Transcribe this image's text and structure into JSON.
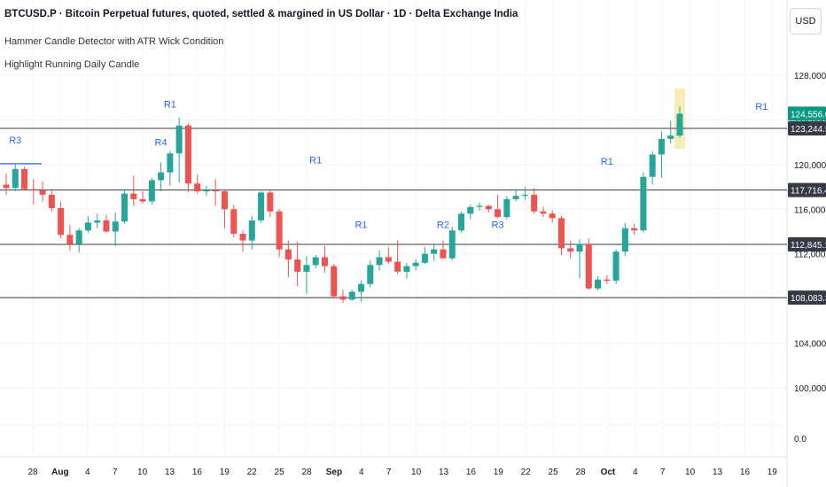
{
  "header": {
    "title": "BTCUSD.P · Bitcoin Perpetual futures, quoted, settled & margined in US Dollar · 1D · Delta Exchange India",
    "indicator_1": "Hammer Candle Detector with ATR Wick Condition",
    "indicator_2": "Highlight Running Daily Candle",
    "currency": "USD"
  },
  "colors": {
    "up": "#26a69a",
    "down": "#ef5350",
    "label": "#2962ff",
    "level": "#363a45",
    "last_price": "#089981",
    "highlight": "#f5e9a8"
  },
  "chart_data": {
    "type": "candlestick",
    "y_axis_ticks": [
      128000,
      124000,
      120000,
      116000,
      112000,
      108000,
      104000,
      100000
    ],
    "y_axis_tick_labels": [
      "128,000.0",
      "124,000.0",
      "120,000.0",
      "116,000.0",
      "112,000.0",
      "108,000.0",
      "104,000.0",
      "100,000.0",
      "0.0"
    ],
    "x_axis_labels": [
      "28",
      "Aug",
      "4",
      "7",
      "10",
      "13",
      "16",
      "19",
      "22",
      "25",
      "28",
      "Sep",
      "4",
      "7",
      "10",
      "13",
      "16",
      "19",
      "22",
      "25",
      "28",
      "Oct",
      "4",
      "7",
      "10",
      "13",
      "16",
      "19"
    ],
    "x_axis_bold": [
      "Aug",
      "Sep",
      "Oct"
    ],
    "last_price": {
      "value": 124556.0,
      "label": "124,556.0"
    },
    "levels": [
      {
        "value": 123244.5,
        "label": "123,244.5"
      },
      {
        "value": 117716.4,
        "label": "117,716.4"
      },
      {
        "value": 112845.1,
        "label": "112,845.1"
      },
      {
        "value": 108083.3,
        "label": "108,083.3"
      }
    ],
    "candles": [
      [
        118200,
        119200,
        117300,
        117900
      ],
      [
        117900,
        120000,
        117600,
        119600
      ],
      [
        119600,
        119800,
        117700,
        117800
      ],
      [
        117800,
        118700,
        116400,
        117700
      ],
      [
        117700,
        118500,
        116700,
        117300
      ],
      [
        117300,
        117800,
        115800,
        116100
      ],
      [
        116100,
        116700,
        113400,
        113700
      ],
      [
        113700,
        114600,
        112300,
        112900
      ],
      [
        112900,
        114300,
        112100,
        114100
      ],
      [
        114100,
        115400,
        113900,
        114800
      ],
      [
        114800,
        115600,
        114300,
        115000
      ],
      [
        115000,
        115500,
        113900,
        114000
      ],
      [
        114000,
        115700,
        112700,
        114900
      ],
      [
        114900,
        117800,
        114700,
        117400
      ],
      [
        117400,
        119000,
        116300,
        116900
      ],
      [
        116900,
        117600,
        116500,
        116700
      ],
      [
        116700,
        118800,
        116400,
        118600
      ],
      [
        118600,
        120200,
        117600,
        119300
      ],
      [
        119300,
        121200,
        118100,
        121000
      ],
      [
        121000,
        124200,
        118400,
        123500
      ],
      [
        123500,
        123700,
        117500,
        118300
      ],
      [
        118300,
        119100,
        117400,
        117600
      ],
      [
        117600,
        118100,
        117200,
        117700
      ],
      [
        117700,
        118700,
        116300,
        117600
      ],
      [
        117600,
        117700,
        114300,
        116000
      ],
      [
        116000,
        116400,
        113500,
        113800
      ],
      [
        113800,
        114100,
        112200,
        113200
      ],
      [
        113200,
        115400,
        112400,
        115000
      ],
      [
        115000,
        117600,
        114800,
        117500
      ],
      [
        117500,
        117700,
        115300,
        115800
      ],
      [
        115800,
        116000,
        111700,
        112400
      ],
      [
        112400,
        113200,
        109900,
        111500
      ],
      [
        111500,
        113100,
        109100,
        110400
      ],
      [
        110400,
        111800,
        108400,
        111000
      ],
      [
        111000,
        111900,
        110700,
        111700
      ],
      [
        111700,
        112700,
        110300,
        110900
      ],
      [
        110900,
        111100,
        108000,
        108200
      ],
      [
        108200,
        108800,
        107600,
        107900
      ],
      [
        107900,
        108800,
        107800,
        108600
      ],
      [
        108600,
        109600,
        107700,
        109300
      ],
      [
        109300,
        111400,
        109000,
        111000
      ],
      [
        111000,
        112300,
        110500,
        111700
      ],
      [
        111700,
        112600,
        111100,
        111300
      ],
      [
        111300,
        113200,
        110200,
        110400
      ],
      [
        110400,
        111200,
        109800,
        110900
      ],
      [
        110900,
        111500,
        110500,
        111200
      ],
      [
        111200,
        112600,
        111100,
        112000
      ],
      [
        112000,
        112800,
        111400,
        112400
      ],
      [
        112400,
        113200,
        111600,
        111600
      ],
      [
        111600,
        114400,
        111400,
        114100
      ],
      [
        114100,
        115800,
        113900,
        115600
      ],
      [
        115600,
        116400,
        115100,
        116200
      ],
      [
        116200,
        116600,
        115900,
        116300
      ],
      [
        116300,
        116400,
        115700,
        116000
      ],
      [
        116000,
        117300,
        115200,
        115300
      ],
      [
        115300,
        117200,
        115100,
        116900
      ],
      [
        116900,
        117800,
        116700,
        117200
      ],
      [
        117200,
        118000,
        116800,
        117300
      ],
      [
        117300,
        117900,
        115600,
        115800
      ],
      [
        115800,
        116200,
        115300,
        115600
      ],
      [
        115600,
        115900,
        114800,
        115200
      ],
      [
        115200,
        115400,
        111900,
        112500
      ],
      [
        112500,
        113200,
        111600,
        112200
      ],
      [
        112200,
        113300,
        109800,
        112900
      ],
      [
        112900,
        113400,
        108800,
        108900
      ],
      [
        108900,
        110000,
        108700,
        109700
      ],
      [
        109700,
        110100,
        109300,
        109600
      ],
      [
        109600,
        112400,
        109300,
        112200
      ],
      [
        112200,
        114800,
        111800,
        114300
      ],
      [
        114300,
        114700,
        113700,
        114100
      ],
      [
        114100,
        119300,
        113900,
        118900
      ],
      [
        118900,
        121200,
        118200,
        120900
      ],
      [
        120900,
        123000,
        118800,
        122300
      ],
      [
        122300,
        123900,
        121900,
        122600
      ],
      [
        122600,
        125200,
        122400,
        124556
      ]
    ],
    "markers": [
      {
        "label": "R3",
        "candle": 1,
        "value": 121900
      },
      {
        "label": "R4",
        "candle": 17,
        "value": 121700
      },
      {
        "label": "R1",
        "candle": 18,
        "value": 125100
      },
      {
        "label": "R1",
        "candle": 34,
        "value": 120100
      },
      {
        "label": "R1",
        "candle": 39,
        "value": 114300
      },
      {
        "label": "R2",
        "candle": 48,
        "value": 114300
      },
      {
        "label": "R3",
        "candle": 54,
        "value": 114300
      },
      {
        "label": "R1",
        "candle": 66,
        "value": 120000
      },
      {
        "label": "R1",
        "candle": 83,
        "value": 124900
      }
    ],
    "grid": true
  }
}
